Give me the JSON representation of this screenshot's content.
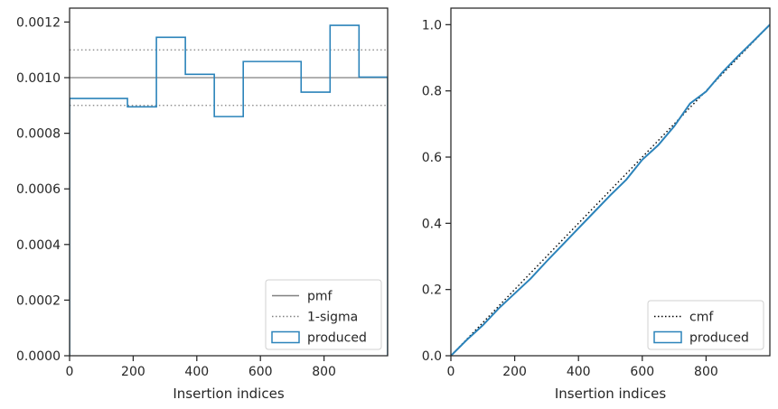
{
  "chart_data": [
    {
      "type": "step",
      "xlabel": "Insertion indices",
      "ylabel": "",
      "xlim": [
        0,
        1000
      ],
      "ylim": [
        0,
        0.00125
      ],
      "xticks": [
        "0",
        "200",
        "400",
        "600",
        "800"
      ],
      "yticks": [
        "0.0000",
        "0.0002",
        "0.0004",
        "0.0006",
        "0.0008",
        "0.0010",
        "0.0012"
      ],
      "grid": false,
      "legend_position": "bottom-right",
      "lines": [
        {
          "name": "pmf",
          "y": 0.001,
          "style": "solid",
          "color": "#808080"
        },
        {
          "name": "1-sigma",
          "y": 0.0011,
          "style": "dotted",
          "color": "#808080"
        },
        {
          "name": "1-sigma",
          "y": 0.0009,
          "style": "dotted",
          "color": "#808080",
          "legend": false
        }
      ],
      "histogram": {
        "name": "produced",
        "color": "#2b83ba",
        "bin_edges": [
          0,
          182,
          273,
          364,
          455,
          546,
          637,
          728,
          819,
          910,
          1000
        ],
        "values": [
          0.000925,
          0.000895,
          0.001145,
          0.001012,
          0.00086,
          0.001058,
          0.001058,
          0.000948,
          0.001188,
          0.001002
        ]
      },
      "legend": [
        "pmf",
        "1-sigma",
        "produced"
      ]
    },
    {
      "type": "line",
      "xlabel": "Insertion indices",
      "ylabel": "",
      "xlim": [
        0,
        1000
      ],
      "ylim": [
        0,
        1.05
      ],
      "xticks": [
        "0",
        "200",
        "400",
        "600",
        "800"
      ],
      "yticks": [
        "0.0",
        "0.2",
        "0.4",
        "0.6",
        "0.8",
        "1.0"
      ],
      "grid": false,
      "legend_position": "bottom-right",
      "series": [
        {
          "name": "cmf",
          "style": "dotted",
          "color": "#000000",
          "x": [
            0,
            1000
          ],
          "y": [
            0,
            1
          ]
        },
        {
          "name": "produced",
          "style": "solid",
          "color": "#2b83ba",
          "x": [
            0,
            50,
            100,
            150,
            200,
            250,
            300,
            350,
            400,
            450,
            500,
            550,
            600,
            650,
            700,
            750,
            800,
            850,
            900,
            950,
            1000
          ],
          "y": [
            0,
            0.048,
            0.092,
            0.143,
            0.188,
            0.233,
            0.285,
            0.335,
            0.385,
            0.435,
            0.485,
            0.532,
            0.592,
            0.636,
            0.693,
            0.762,
            0.798,
            0.855,
            0.905,
            0.952,
            1.0
          ]
        }
      ],
      "legend": [
        "cmf",
        "produced"
      ]
    }
  ]
}
